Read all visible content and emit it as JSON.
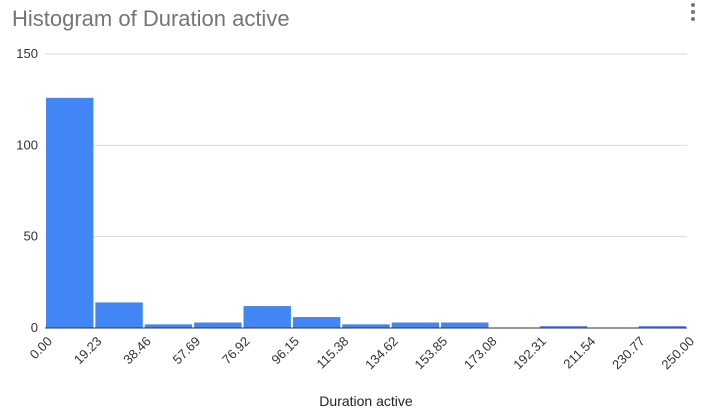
{
  "chart_data": {
    "type": "bar",
    "title": "Histogram of Duration active",
    "xlabel": "Duration active",
    "ylabel": "",
    "ylim": [
      0,
      150
    ],
    "yticks": [
      "0",
      "50",
      "100",
      "150"
    ],
    "bin_edges": [
      "0.00",
      "19.23",
      "38.46",
      "57.69",
      "76.92",
      "96.15",
      "115.38",
      "134.62",
      "153.85",
      "173.08",
      "192.31",
      "211.54",
      "230.77",
      "250.00"
    ],
    "values": [
      126,
      14,
      2,
      3,
      12,
      6,
      2,
      3,
      3,
      0,
      1,
      0,
      1
    ],
    "bar_color": "#4285f4",
    "grid": true,
    "legend": "none"
  }
}
